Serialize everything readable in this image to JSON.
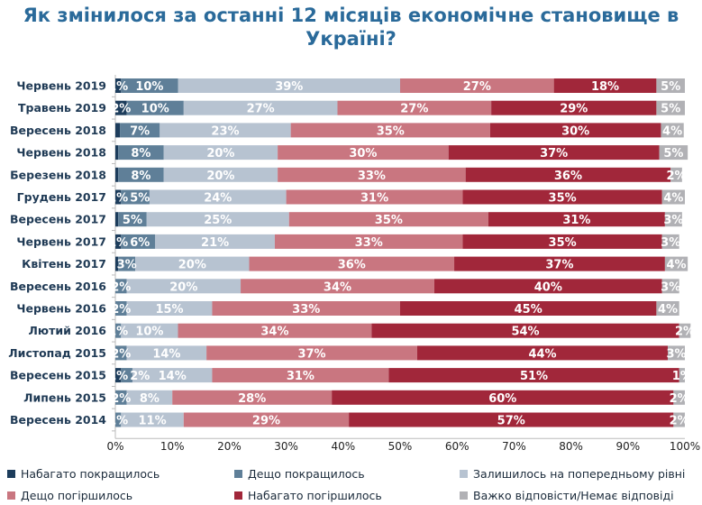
{
  "chart_data": {
    "type": "bar",
    "orientation": "horizontal",
    "stacked": true,
    "title": "Як змінилося за останні 12 місяців економічне становище в Україні?",
    "xlim": [
      0,
      100
    ],
    "xticks": [
      "0%",
      "10%",
      "20%",
      "30%",
      "40%",
      "50%",
      "60%",
      "70%",
      "80%",
      "90%",
      "100%"
    ],
    "legend_position": "bottom",
    "categories": [
      "Червень 2019",
      "Травень 2019",
      "Вересень 2018",
      "Червень 2018",
      "Березень 2018",
      "Грудень 2017",
      "Вересень 2017",
      "Червень 2017",
      "Квітень 2017",
      "Вересень 2016",
      "Червень 2016",
      "Лютий 2016",
      "Листопад 2015",
      "Вересень 2015",
      "Липень 2015",
      "Вересень 2014"
    ],
    "series": [
      {
        "name": "Набагато покращилось",
        "color": "#1d3d5c",
        "values": [
          1,
          2,
          0.8,
          0.5,
          0.5,
          1,
          0.5,
          1,
          0.5,
          0,
          0,
          0,
          0,
          1,
          0,
          0
        ]
      },
      {
        "name": "Дещо покращилось",
        "color": "#5f7f98",
        "values": [
          10,
          10,
          7,
          8,
          8,
          5,
          5,
          6,
          3,
          2,
          2,
          1,
          2,
          2,
          2,
          1
        ]
      },
      {
        "name": "Залишилось на попередньому рівні",
        "color": "#b7c3d1",
        "values": [
          39,
          27,
          23,
          20,
          20,
          24,
          25,
          21,
          20,
          20,
          15,
          10,
          14,
          14,
          8,
          11
        ]
      },
      {
        "name": "Дещо погіршилось",
        "color": "#c97680",
        "values": [
          27,
          27,
          35,
          30,
          33,
          31,
          35,
          33,
          36,
          34,
          33,
          34,
          37,
          31,
          28,
          29
        ]
      },
      {
        "name": "Набагато погіршилось",
        "color": "#a1273a",
        "values": [
          18,
          29,
          30,
          37,
          36,
          35,
          31,
          35,
          37,
          40,
          45,
          54,
          44,
          51,
          60,
          57
        ]
      },
      {
        "name": "Важко відповісти/Немає відповіді",
        "color": "#b1b1b5",
        "values": [
          5,
          5,
          4,
          5,
          2,
          4,
          3,
          3,
          4,
          3,
          4,
          2,
          3,
          1,
          2,
          2
        ]
      }
    ]
  }
}
